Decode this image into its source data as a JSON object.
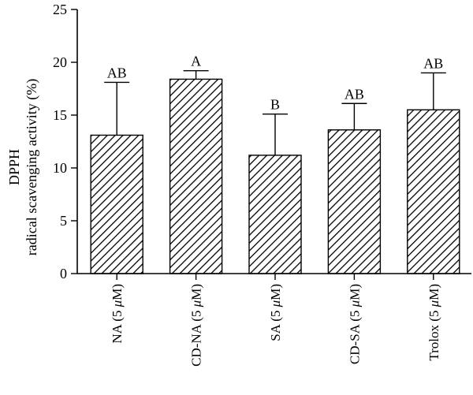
{
  "chart_data": {
    "type": "bar",
    "categories": [
      "NA (5 μM)",
      "CD-NA (5 μM)",
      "SA (5 μM)",
      "CD-SA (5 μM)",
      "Trolox (5 μM)"
    ],
    "category_parts": [
      {
        "prefix": "NA (5 ",
        "mu": "μ",
        "suffix": "M)"
      },
      {
        "prefix": "CD-NA (5 ",
        "mu": "μ",
        "suffix": "M)"
      },
      {
        "prefix": "SA (5 ",
        "mu": "μ",
        "suffix": "M)"
      },
      {
        "prefix": "CD-SA (5 ",
        "mu": "μ",
        "suffix": "M)"
      },
      {
        "prefix": "Trolox (5 ",
        "mu": "μ",
        "suffix": "M)"
      }
    ],
    "values": [
      13.1,
      18.4,
      11.2,
      13.6,
      15.5
    ],
    "error_upper": [
      5.0,
      0.8,
      3.9,
      2.5,
      3.5
    ],
    "significance": [
      "AB",
      "A",
      "B",
      "AB",
      "AB"
    ],
    "ylabel_line1": "DPPH",
    "ylabel_line2": "radical scavenging activity (%)",
    "ylim": [
      0,
      25
    ],
    "yticks": [
      "0",
      "5",
      "10",
      "15",
      "20",
      "25"
    ],
    "yticks_values": [
      0,
      5,
      10,
      15,
      20,
      25
    ],
    "grid": false,
    "bar_pattern": "diagonal-hatch"
  }
}
